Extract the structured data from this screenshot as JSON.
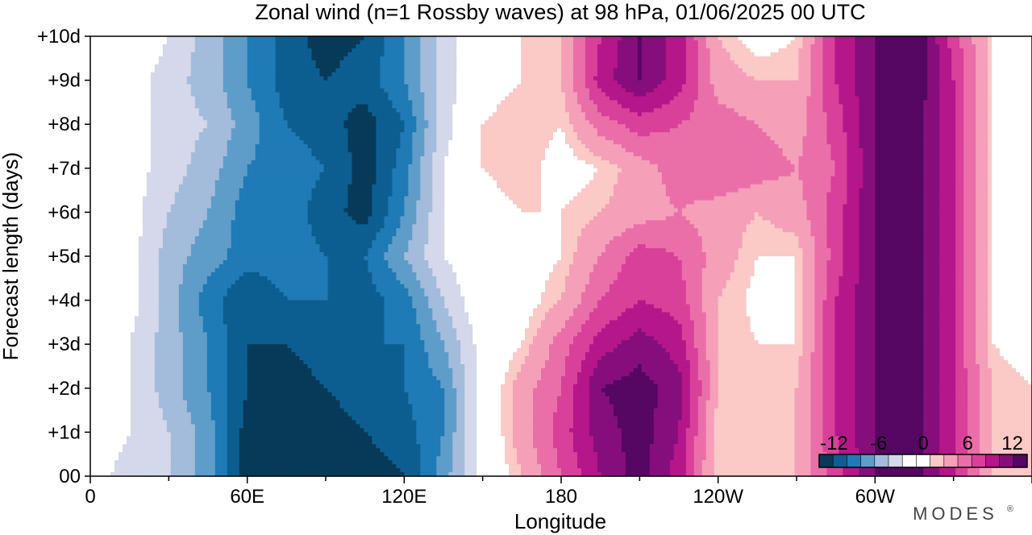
{
  "chart_data": {
    "type": "heatmap",
    "title": "Zonal wind (n=1 Rossby waves) at 98 hPa,  01/06/2025  00 UTC",
    "xlabel": "Longitude",
    "ylabel": "Forecast length (days)",
    "x_ticks": [
      "0",
      "60E",
      "120E",
      "180",
      "120W",
      "60W"
    ],
    "x_tick_degrees": [
      0,
      60,
      120,
      180,
      240,
      300
    ],
    "xlim": [
      0,
      360
    ],
    "y_ticks": [
      "00",
      "+1d",
      "+2d",
      "+3d",
      "+4d",
      "+5d",
      "+6d",
      "+7d",
      "+8d",
      "+9d",
      "+10d"
    ],
    "ylim": [
      0,
      10
    ],
    "grid": false,
    "colorbar": {
      "labels": [
        "-12",
        "-6",
        "0",
        "6",
        "12"
      ],
      "label_values": [
        -12,
        -6,
        0,
        6,
        12
      ],
      "levels": [
        -14,
        -12,
        -10,
        -8,
        -6,
        -4,
        -2,
        -1,
        1,
        2,
        4,
        6,
        8,
        10,
        12,
        14
      ],
      "colors": [
        "#063a58",
        "#0d5e90",
        "#1f7ab5",
        "#5e9dc9",
        "#a3bcdb",
        "#d5d8ea",
        "#ffffff",
        "#ffffff",
        "#fbc9c6",
        "#f59fb9",
        "#ea6fa9",
        "#d9409a",
        "#b5168a",
        "#860e7c",
        "#560663"
      ],
      "placement": "bottom-right"
    },
    "grid_days": [
      0,
      1,
      2,
      3,
      4,
      5,
      6,
      7,
      8,
      9,
      10
    ],
    "grid_lons": [
      0,
      15,
      30,
      45,
      60,
      75,
      90,
      105,
      120,
      135,
      150,
      165,
      180,
      195,
      210,
      225,
      240,
      255,
      270,
      285,
      300,
      315,
      330,
      345,
      360
    ],
    "values": [
      [
        -1.5,
        -2.5,
        -4,
        -7,
        -13,
        -13,
        -13,
        -13,
        -12,
        -7,
        -1,
        2,
        6,
        10,
        13,
        9,
        1,
        1,
        2,
        7,
        12,
        13,
        8,
        2,
        1
      ],
      [
        -1,
        -2,
        -4,
        -7,
        -13,
        -13,
        -13,
        -12,
        -11,
        -8,
        -1,
        3,
        7,
        11,
        13,
        10,
        1,
        1,
        2,
        8,
        12,
        13,
        8,
        2,
        1
      ],
      [
        0,
        -2,
        -5,
        -8,
        -12,
        -13,
        -12,
        -11,
        -10,
        -8,
        -1,
        3,
        6,
        12,
        13,
        11,
        2,
        1,
        2,
        8,
        12,
        13,
        8,
        2,
        1
      ],
      [
        0,
        -2,
        -5,
        -8,
        -12,
        -12,
        -11,
        -10,
        -10,
        -6,
        -1,
        1,
        5,
        9,
        11,
        9,
        2,
        1,
        1,
        8,
        12,
        13,
        8,
        1,
        0
      ],
      [
        1,
        -1,
        -5,
        -9,
        -12,
        -10,
        -10,
        -11,
        -9,
        -4,
        0,
        0,
        2,
        6,
        8,
        7,
        2,
        0.5,
        1,
        8,
        12,
        13,
        8,
        1,
        0
      ],
      [
        1,
        -1,
        -5,
        -7,
        -9,
        -9,
        -10,
        -10,
        -6,
        -2,
        0,
        0,
        1,
        4,
        7,
        6,
        3,
        1,
        1,
        7,
        12,
        13,
        8,
        1,
        1
      ],
      [
        0,
        -1,
        -4,
        -6,
        -9,
        -9,
        -11,
        -13,
        -8,
        -2,
        0,
        1,
        1,
        2,
        3,
        4,
        3,
        2,
        3,
        7,
        12,
        13,
        8,
        1,
        0
      ],
      [
        0,
        -1,
        -3,
        -5,
        -8,
        -9,
        -10,
        -13,
        -9,
        -2,
        1,
        2,
        0,
        1,
        3,
        5,
        6,
        5,
        4,
        6,
        12,
        13,
        8,
        1,
        0
      ],
      [
        0,
        -1,
        -3,
        -4,
        -7,
        -10,
        -11,
        -13,
        -10,
        -3,
        1,
        2,
        1,
        5,
        7,
        6,
        5,
        4,
        3,
        7,
        12,
        13,
        8,
        1,
        0
      ],
      [
        0,
        -1,
        -3,
        -5,
        -8,
        -11,
        -12,
        -11,
        -8,
        -3,
        0,
        1,
        2,
        9,
        12,
        9,
        3,
        2,
        2,
        8,
        12,
        14,
        8,
        1,
        0
      ],
      [
        0,
        0,
        -2,
        -5,
        -8,
        -11,
        -13,
        -12,
        -8,
        -3,
        0,
        1,
        2,
        8,
        12,
        9,
        2,
        0,
        1,
        8,
        12,
        14,
        7,
        1,
        0
      ]
    ]
  },
  "brand": "MODES",
  "brand_mark": "®"
}
